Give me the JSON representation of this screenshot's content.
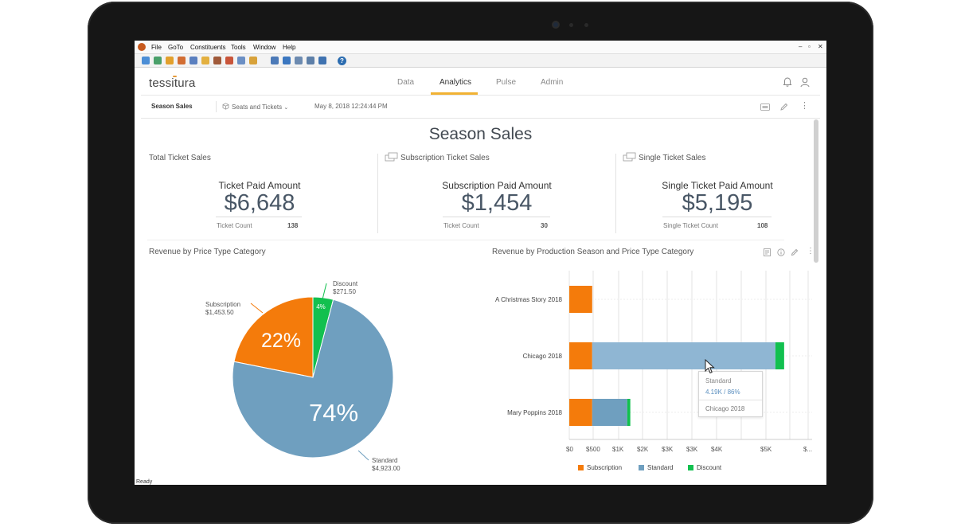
{
  "menu": [
    "File",
    "GoTo",
    "Constituents",
    "Tools",
    "Window",
    "Help"
  ],
  "window_controls": [
    "–",
    "▫",
    "✕"
  ],
  "nav": {
    "brand": "tessitura",
    "tabs": [
      "Data",
      "Analytics",
      "Pulse",
      "Admin"
    ],
    "active_tab": "Analytics"
  },
  "subbar": {
    "crumb": "Season Sales",
    "datasource": "Seats and Tickets",
    "timestamp": "May 8, 2018 12:24:44 PM"
  },
  "dashboard": {
    "title": "Season Sales",
    "kpis": [
      {
        "heading": "Total Ticket Sales",
        "label": "Ticket  Paid  Amount",
        "value": "$6,648",
        "sub_label": "Ticket Count",
        "sub_value": "138"
      },
      {
        "heading": "Subscription Ticket Sales",
        "label": "Subscription Paid Amount",
        "value": "$1,454",
        "sub_label": "Ticket Count",
        "sub_value": "30"
      },
      {
        "heading": "Single Ticket Sales",
        "label": "Single Ticket Paid Amount",
        "value": "$5,195",
        "sub_label": "Single Ticket Count",
        "sub_value": "108"
      }
    ]
  },
  "status": "Ready",
  "colors": {
    "subscription": "#f47b0b",
    "standard": "#6f9fbf",
    "discount": "#12c04f",
    "accent": "#f1b233"
  },
  "chart_data": [
    {
      "type": "pie",
      "title": "Revenue by Price Type Category",
      "categories": [
        "Subscription",
        "Standard",
        "Discount"
      ],
      "values": [
        1453.5,
        4923.0,
        271.5
      ],
      "value_labels": [
        "$1,453.50",
        "$4,923.00",
        "$271.50"
      ],
      "percent_labels": [
        "22%",
        "74%",
        "4%"
      ]
    },
    {
      "type": "bar",
      "orientation": "horizontal",
      "stacked": true,
      "title": "Revenue by Production Season and Price Type Category",
      "categories": [
        "A Christmas Story 2018",
        "Chicago 2018",
        "Mary Poppins 2018"
      ],
      "series": [
        {
          "name": "Subscription",
          "values": [
            480,
            480,
            480
          ]
        },
        {
          "name": "Standard",
          "values": [
            0,
            4190,
            800
          ]
        },
        {
          "name": "Discount",
          "values": [
            0,
            200,
            70
          ]
        }
      ],
      "x_ticks": [
        "$0",
        "$500",
        "$1K",
        "$2K",
        "$3K",
        "$3K",
        "$4K",
        "$5K",
        "$..."
      ],
      "xlim": [
        0,
        5300
      ],
      "grid": true,
      "legend": "bottom",
      "tooltip": {
        "series": "Standard",
        "value": "4.19K / 86%",
        "category": "Chicago 2018"
      }
    }
  ]
}
